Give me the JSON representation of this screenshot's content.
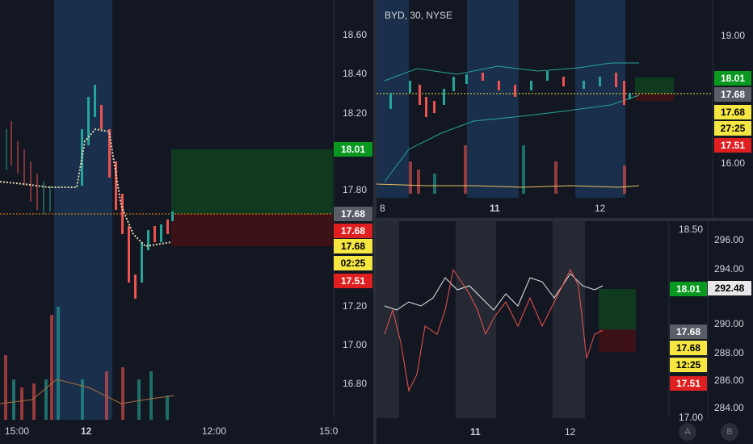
{
  "left_chart": {
    "price_ticks": [
      "18.60",
      "18.40",
      "18.20",
      "17.80",
      "17.20",
      "17.00",
      "16.80"
    ],
    "time_ticks": [
      "15:00",
      "12",
      "12:00",
      "15:0"
    ],
    "tags": {
      "target": "18.01",
      "last": "17.68",
      "stop_top": "17.68",
      "entry": "17.68",
      "timer": "02:25",
      "stop": "17.51"
    }
  },
  "top_right_chart": {
    "title": "BYD, 30, NYSE",
    "price_ticks": [
      "19.00",
      "16.00"
    ],
    "time_ticks": [
      "8",
      "11",
      "12"
    ],
    "tags": {
      "target": "18.01",
      "last": "17.68",
      "entry": "17.68",
      "timer": "27:25",
      "stop": "17.51"
    }
  },
  "bottom_right_chart": {
    "left_ticks": [
      "18.50",
      "17.00"
    ],
    "right_ticks": [
      "296.00",
      "294.00",
      "290.00",
      "288.00",
      "286.00",
      "284.00"
    ],
    "time_ticks": [
      "11",
      "12"
    ],
    "tags": {
      "target": "18.01",
      "compare": "292.48",
      "last": "17.68",
      "entry": "17.68",
      "timer": "12:25",
      "stop": "17.51"
    },
    "buttons": {
      "a": "A",
      "b": "B"
    }
  },
  "colors": {
    "bg": "#131722",
    "up": "#26a69a",
    "down": "#ef5350",
    "session": "#1c3a5c",
    "target_zone": "#0f3a1f",
    "stop_zone": "#3d1217"
  }
}
